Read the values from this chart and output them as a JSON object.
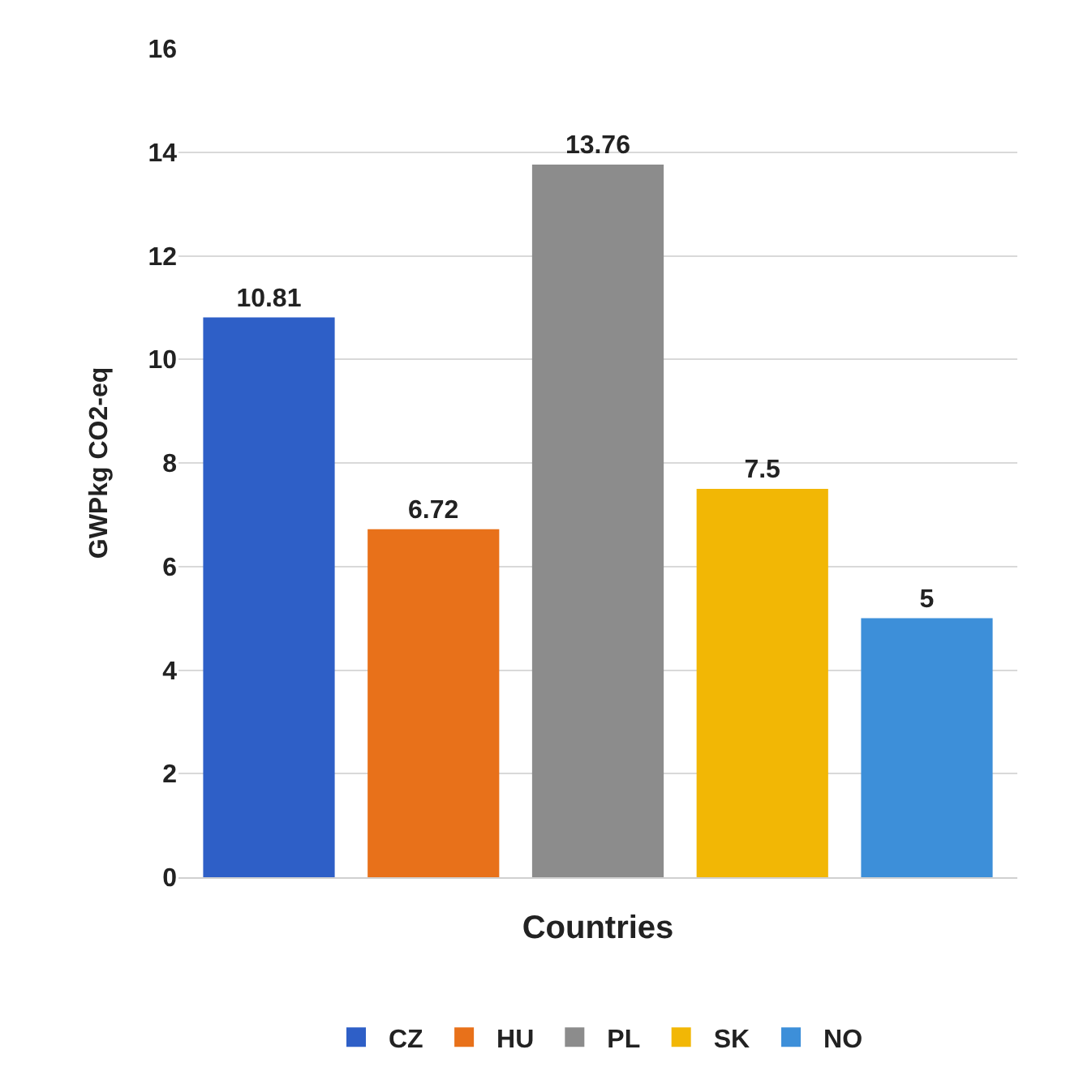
{
  "chart_data": {
    "type": "bar",
    "categories": [
      null,
      null,
      null,
      null,
      null
    ],
    "series": [
      {
        "name": "CZ",
        "color": "#2e5fc7",
        "values": [
          10.81,
          null,
          null,
          null,
          null
        ]
      },
      {
        "name": "HU",
        "color": "#e8711a",
        "values": [
          null,
          6.72,
          null,
          null,
          null
        ]
      },
      {
        "name": "PL",
        "color": "#8c8c8c",
        "values": [
          null,
          null,
          13.76,
          null,
          null
        ]
      },
      {
        "name": "SK",
        "color": "#f2b705",
        "values": [
          null,
          null,
          null,
          7.5,
          null
        ]
      },
      {
        "name": "NO",
        "color": "#3d8fd9",
        "values": [
          null,
          null,
          null,
          null,
          5
        ]
      }
    ],
    "xlabel": "Countries",
    "ylabel": "GWPkg CO2-eq",
    "ylim": [
      0,
      16
    ],
    "yticks": [
      0,
      2,
      4,
      6,
      8,
      10,
      12,
      14,
      16
    ],
    "grid": "y",
    "data_labels": true,
    "legend": "bottom"
  }
}
